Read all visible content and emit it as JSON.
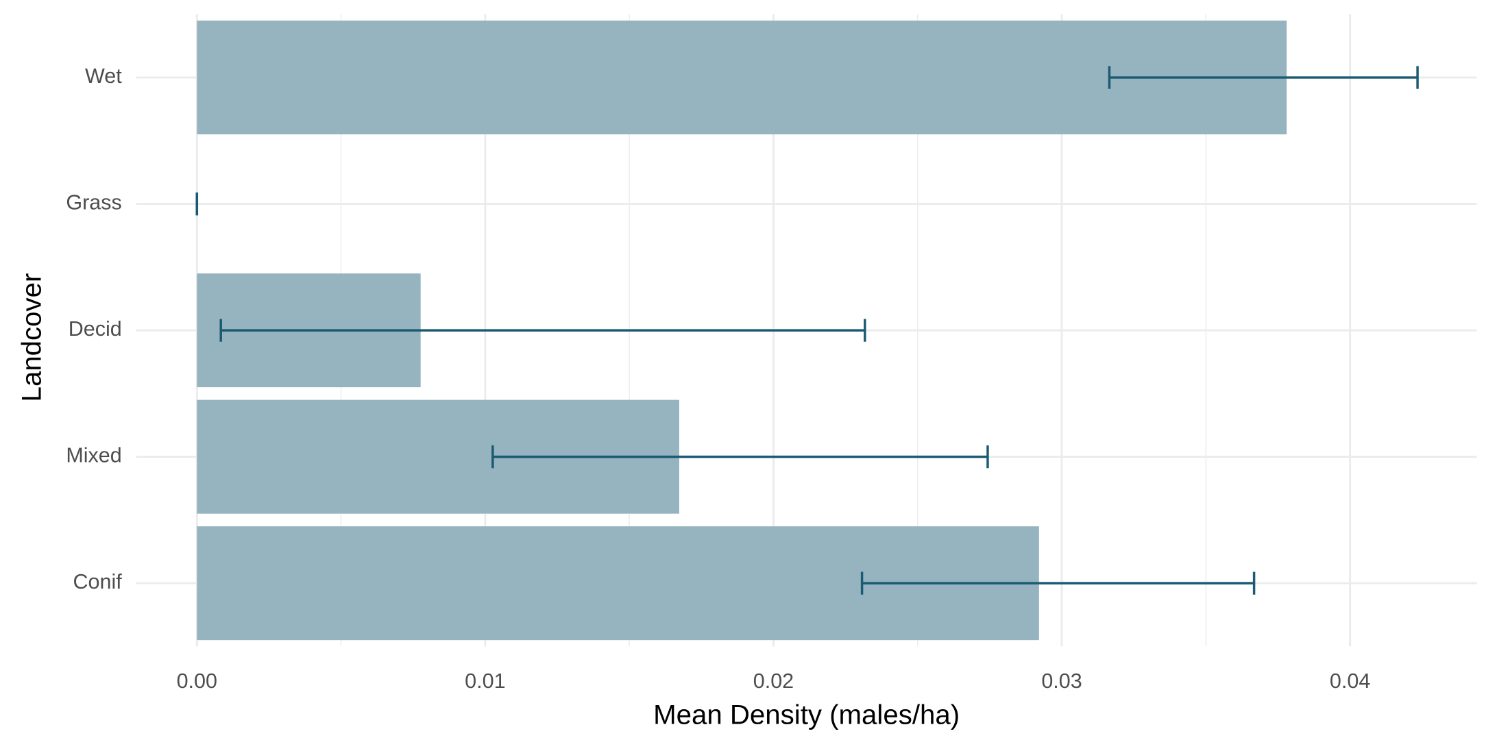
{
  "chart_data": {
    "type": "bar",
    "orientation": "horizontal",
    "x_label": "Mean Density (males/ha)",
    "y_label": "Landcover",
    "categories": [
      "Conif",
      "Mixed",
      "Decid",
      "Grass",
      "Wet"
    ],
    "values": [
      0.02921,
      0.01673,
      0.00776,
      0,
      0.0378
    ],
    "lower": [
      0.02307,
      0.01026,
      0.00083,
      0,
      0.03165
    ],
    "upper": [
      0.03667,
      0.02743,
      0.02317,
      0,
      0.04234
    ],
    "color": "#96b4bf",
    "error_color": "#1a5a72",
    "xlim": [
      -0.00211,
      0.0444
    ],
    "xticks": [
      {
        "value": 0,
        "label": "0.00"
      },
      0.01,
      0.02,
      0.03,
      0.04
    ],
    "grid": true,
    "minor_grid": true
  }
}
